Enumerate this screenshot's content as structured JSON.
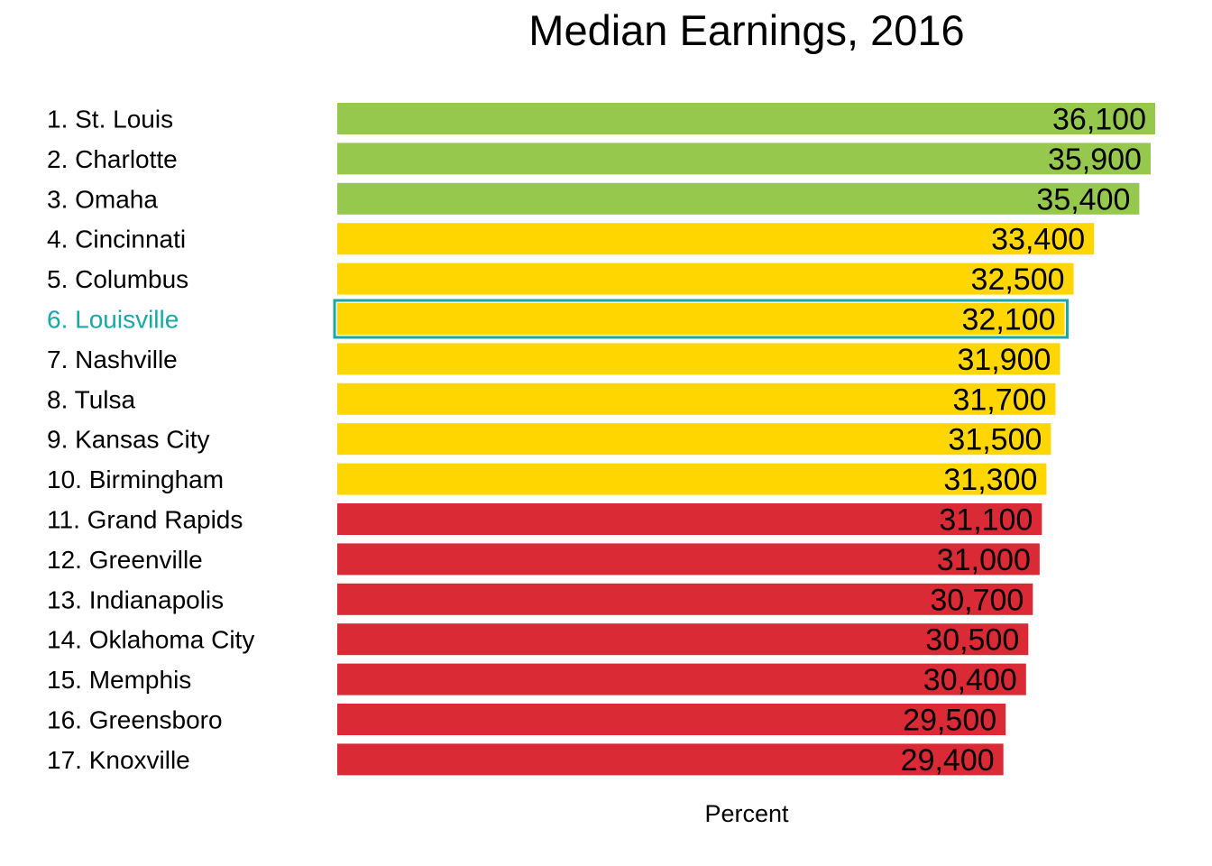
{
  "chart_data": {
    "type": "bar",
    "orientation": "horizontal",
    "title": "Median Earnings, 2016",
    "xlabel": "Percent",
    "ylabel": "",
    "xlim": [
      0,
      36100
    ],
    "categories": [
      "1. St. Louis",
      "2. Charlotte",
      "3. Omaha",
      "4. Cincinnati",
      "5. Columbus",
      "6. Louisville",
      "7. Nashville",
      "8. Tulsa",
      "9. Kansas City",
      "10. Birmingham",
      "11. Grand Rapids",
      "12. Greenville",
      "13. Indianapolis",
      "14. Oklahoma City",
      "15. Memphis",
      "16. Greensboro",
      "17. Knoxville"
    ],
    "values": [
      36100,
      35900,
      35400,
      33400,
      32500,
      32100,
      31900,
      31700,
      31500,
      31300,
      31100,
      31000,
      30700,
      30500,
      30400,
      29500,
      29400
    ],
    "value_labels": [
      "36,100",
      "35,900",
      "35,400",
      "33,400",
      "32,500",
      "32,100",
      "31,900",
      "31,700",
      "31,500",
      "31,300",
      "31,100",
      "31,000",
      "30,700",
      "30,500",
      "30,400",
      "29,500",
      "29,400"
    ],
    "tier": [
      "top",
      "top",
      "top",
      "middle",
      "middle",
      "middle",
      "middle",
      "middle",
      "middle",
      "middle",
      "bottom",
      "bottom",
      "bottom",
      "bottom",
      "bottom",
      "bottom",
      "bottom"
    ],
    "highlight": "6. Louisville",
    "colors": {
      "top": "#96c84e",
      "middle": "#ffd600",
      "bottom": "#d92a36",
      "highlight": "#1aa7a7",
      "label": "#000000"
    },
    "grid": false,
    "legend": "none"
  }
}
